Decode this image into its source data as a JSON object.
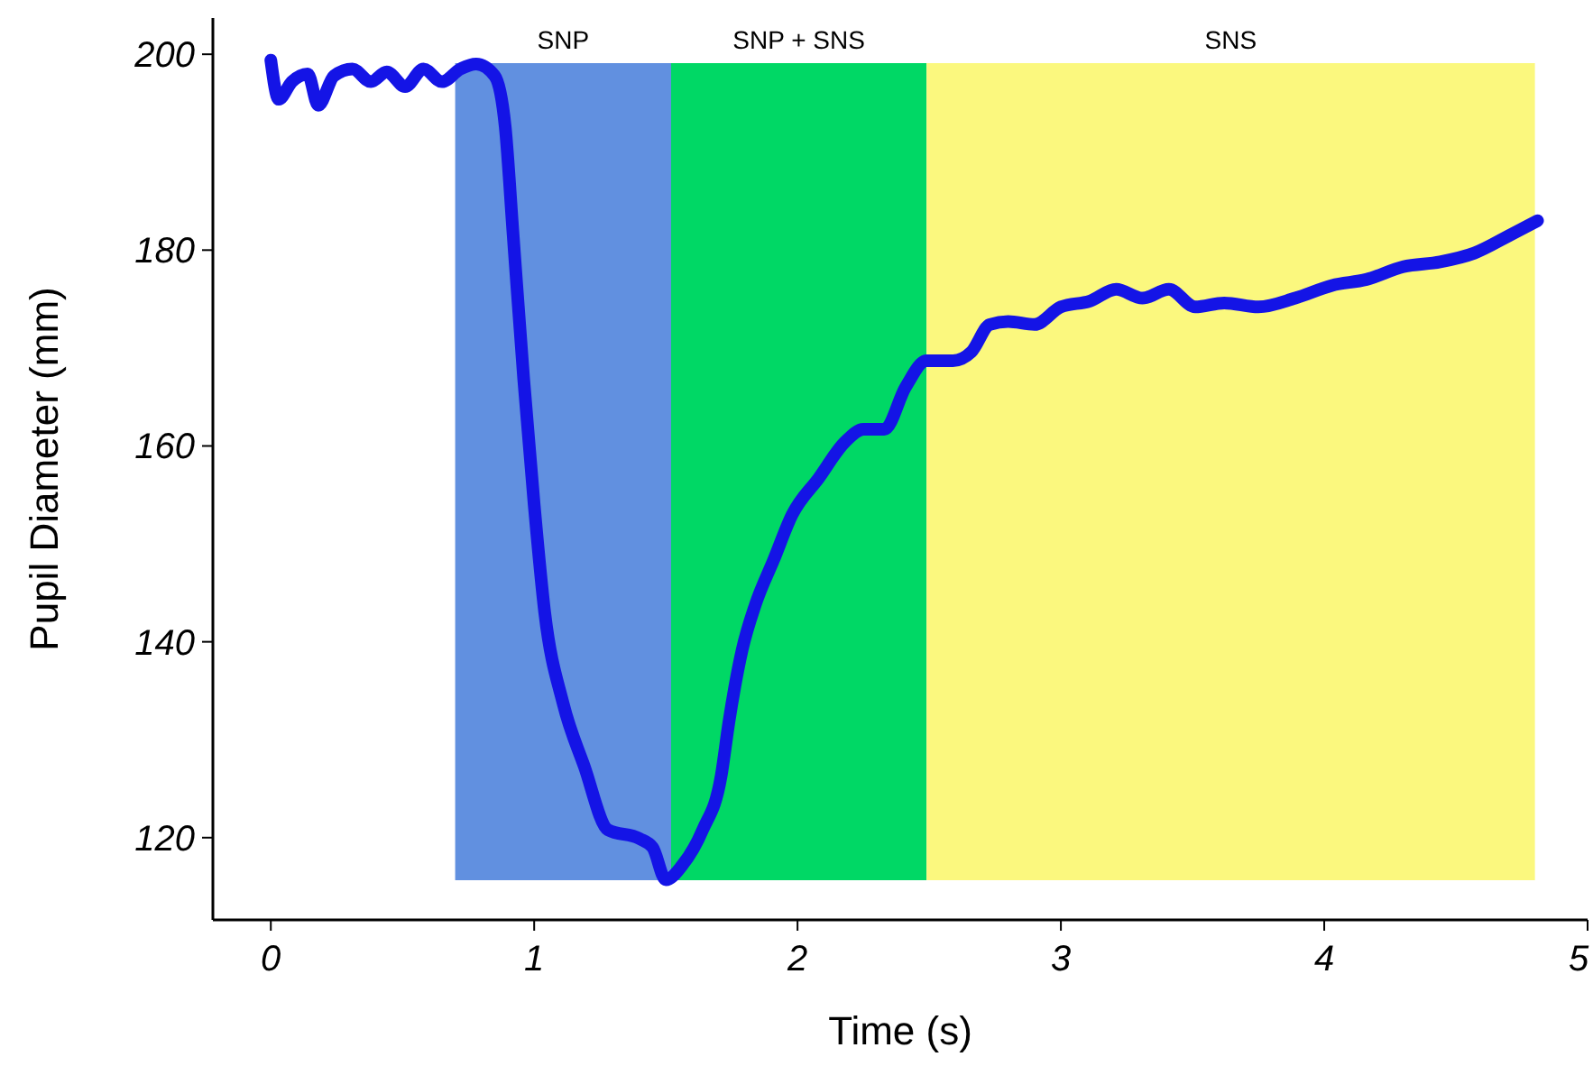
{
  "chart_data": {
    "type": "line",
    "xlabel": "Time (s)",
    "ylabel": "Pupil Diameter (mm)",
    "xlim": [
      -0.22,
      5
    ],
    "ylim": [
      111.6,
      203.7
    ],
    "xticks": [
      0,
      1,
      2,
      3,
      4,
      5
    ],
    "yticks": [
      120,
      140,
      160,
      180,
      200
    ],
    "grid": false,
    "bands": [
      {
        "axis": "x",
        "from": 0.7,
        "to": 1.52,
        "label": "SNP",
        "color": "#6190e0"
      },
      {
        "axis": "x",
        "from": 1.52,
        "to": 2.49,
        "label": "SNP + SNS",
        "color": "#00d865"
      },
      {
        "axis": "x",
        "from": 2.49,
        "to": 4.8,
        "label": "SNS",
        "color": "#fbf87e"
      }
    ],
    "series": [
      {
        "color": "#1414e6",
        "x": [
          0,
          0.03,
          0.08,
          0.14,
          0.18,
          0.24,
          0.31,
          0.38,
          0.44,
          0.51,
          0.58,
          0.65,
          0.72,
          0.78,
          0.85,
          0.89,
          0.92,
          0.96,
          1.0,
          1.04,
          1.11,
          1.19,
          1.28,
          1.4,
          1.45,
          1.5,
          1.56,
          1.64,
          1.71,
          1.74,
          1.79,
          1.84,
          1.91,
          1.98,
          2.08,
          2.18,
          2.25,
          2.33,
          2.41,
          2.49,
          2.59,
          2.66,
          2.73,
          2.8,
          2.9,
          3.0,
          3.11,
          3.21,
          3.31,
          3.41,
          3.51,
          3.62,
          3.75,
          3.89,
          4.03,
          4.16,
          4.3,
          4.44,
          4.57,
          4.71,
          4.81
        ],
        "values": [
          199.4,
          195.4,
          197.2,
          198,
          194.8,
          197.8,
          198.5,
          197.2,
          198.2,
          196.7,
          198.5,
          197.2,
          198.5,
          199,
          197.8,
          192.6,
          181.6,
          166.9,
          154,
          143,
          133.7,
          127.3,
          120.8,
          119.9,
          119,
          115.7,
          117.1,
          120.8,
          126.3,
          131.9,
          139.2,
          143.8,
          148.4,
          153,
          156.7,
          160.4,
          161.7,
          161.7,
          166,
          168.7,
          168.7,
          169.6,
          172.4,
          172.7,
          172.4,
          174.2,
          174.8,
          176,
          175.1,
          176,
          174.2,
          174.6,
          174.2,
          175.1,
          176.4,
          177,
          178.3,
          178.8,
          179.7,
          181.6,
          183
        ]
      }
    ]
  }
}
